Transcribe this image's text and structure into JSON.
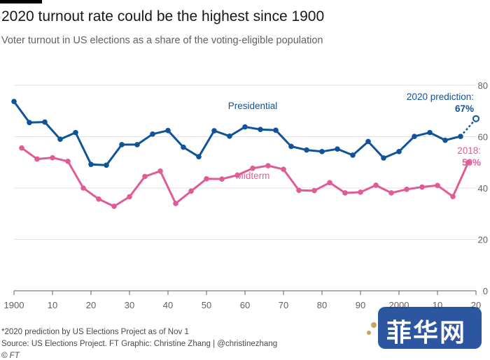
{
  "header": {
    "title": "2020 turnout rate could be the highest since 1900",
    "subtitle": "Voter turnout in US elections as a share of the voting-eligible population"
  },
  "chart_data": {
    "type": "line",
    "xlim": [
      1900,
      2020
    ],
    "ylim": [
      0,
      80
    ],
    "y_ticks": [
      0,
      20,
      40,
      60,
      80
    ],
    "x_ticks": [
      1900,
      1910,
      1920,
      1930,
      1940,
      1950,
      1960,
      1970,
      1980,
      1990,
      2000,
      2010,
      2020
    ],
    "x_tick_labels": [
      "1900",
      "10",
      "20",
      "30",
      "40",
      "50",
      "60",
      "70",
      "80",
      "90",
      "2000",
      "10",
      "20"
    ],
    "grid": "horizontal",
    "y_axis_position": "right",
    "colors": {
      "Presidential": "#0f5499",
      "Midterm": "#e05c97"
    },
    "series": [
      {
        "name": "Presidential",
        "label_year": 1962,
        "label_value": 70.7,
        "x": [
          1900,
          1904,
          1908,
          1912,
          1916,
          1920,
          1924,
          1928,
          1932,
          1936,
          1940,
          1944,
          1948,
          1952,
          1956,
          1960,
          1964,
          1968,
          1972,
          1976,
          1980,
          1984,
          1988,
          1992,
          1996,
          2000,
          2004,
          2008,
          2012,
          2016
        ],
        "values": [
          73.7,
          65.5,
          65.7,
          59.0,
          61.6,
          49.2,
          48.9,
          56.9,
          56.9,
          61.0,
          62.4,
          55.9,
          52.2,
          62.3,
          60.2,
          63.8,
          62.8,
          62.5,
          56.2,
          54.8,
          54.2,
          55.2,
          52.8,
          58.1,
          51.7,
          54.2,
          60.1,
          61.6,
          58.6,
          60.1
        ]
      },
      {
        "name": "Midterm",
        "label_year": 1962,
        "label_value": 43.5,
        "x": [
          1902,
          1906,
          1910,
          1914,
          1918,
          1922,
          1926,
          1930,
          1934,
          1938,
          1942,
          1946,
          1950,
          1954,
          1958,
          1962,
          1966,
          1970,
          1974,
          1978,
          1982,
          1986,
          1990,
          1994,
          1998,
          2002,
          2006,
          2010,
          2014,
          2018
        ],
        "values": [
          55.6,
          51.3,
          51.8,
          50.4,
          40.0,
          35.7,
          32.9,
          36.6,
          44.5,
          46.6,
          34.0,
          38.8,
          43.6,
          43.5,
          45.0,
          47.7,
          48.7,
          47.3,
          39.1,
          39.0,
          42.1,
          38.1,
          38.4,
          41.1,
          38.1,
          39.5,
          40.4,
          41.0,
          36.7,
          50.0
        ]
      }
    ],
    "prediction": {
      "year": 2020,
      "value": 67,
      "from_year": 2016,
      "from_value": 60.1
    },
    "annotations": {
      "prediction_line1": "2020 prediction:",
      "prediction_line2": "67%",
      "midterm_line1": "2018:",
      "midterm_line2": "50%"
    }
  },
  "footer": {
    "note": "*2020 prediction by US Elections Project as of Nov 1",
    "source": "Source: US Elections Project. FT Graphic: Christine Zhang | @christinezhang",
    "copyright": "© FT"
  },
  "watermark": {
    "text": "菲华网"
  }
}
